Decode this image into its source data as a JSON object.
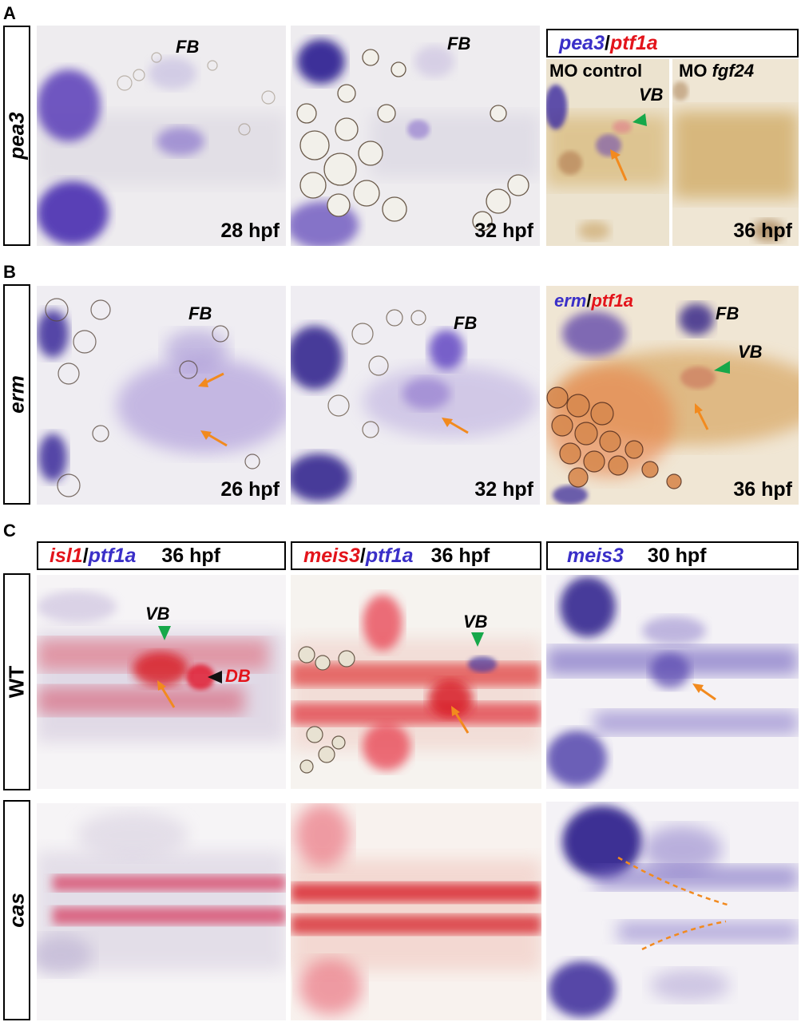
{
  "panels": {
    "A": {
      "letter": "A",
      "row_label": "pea3",
      "images": [
        {
          "fb": "FB",
          "timepoint": "28 hpf"
        },
        {
          "fb": "FB",
          "timepoint": "32 hpf"
        },
        {
          "header_gene1": "pea3",
          "header_sep": "/",
          "header_gene2": "ptf1a",
          "mo_control": "MO control",
          "mo_prefix": "MO ",
          "mo_gene": "fgf24",
          "vb": "VB",
          "timepoint": "36 hpf"
        }
      ]
    },
    "B": {
      "letter": "B",
      "row_label": "erm",
      "images": [
        {
          "fb": "FB",
          "timepoint": "26 hpf"
        },
        {
          "fb": "FB",
          "timepoint": "32 hpf"
        },
        {
          "legend_gene1": "erm",
          "legend_sep": "/",
          "legend_gene2": "ptf1a",
          "fb": "FB",
          "vb": "VB",
          "timepoint": "36 hpf"
        }
      ]
    },
    "C": {
      "letter": "C",
      "headers": [
        {
          "gene1": "isl1",
          "sep": "/",
          "gene2": "ptf1a",
          "time": "36 hpf"
        },
        {
          "gene1": "meis3",
          "sep": "/",
          "gene2": "ptf1a",
          "time": "36 hpf"
        },
        {
          "gene1": "meis3",
          "sep": "",
          "gene2": "",
          "time": "30 hpf"
        }
      ],
      "rows": [
        {
          "label": "WT",
          "annotations": {
            "vb1": "VB",
            "db": "DB",
            "vb2": "VB"
          }
        },
        {
          "label": "cas"
        }
      ]
    }
  },
  "colors": {
    "stain_blue": "#3a2fc8",
    "stain_red": "#e3141b",
    "arrow_orange": "#f28a1e",
    "arrowhead_green": "#17a84a"
  }
}
